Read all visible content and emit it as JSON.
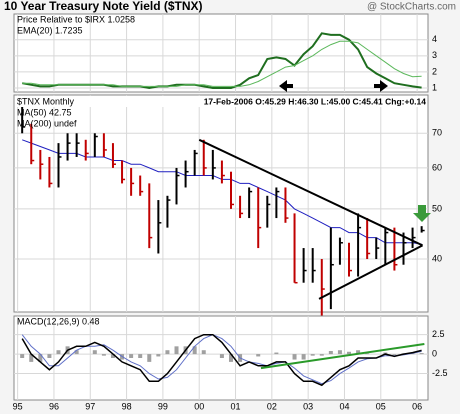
{
  "header": {
    "title": "10 Year Treasury Note Yield ($TNX)",
    "credit": "@ StockCharts.com"
  },
  "chart_data": [
    {
      "type": "line",
      "labels": [
        "Price Relative to $IRX  1.0258",
        "EMA(20)  1.7235"
      ],
      "x": [
        1995.125,
        1995.375,
        1995.625,
        1995.875,
        1996.125,
        1996.375,
        1996.625,
        1996.875,
        1997.125,
        1997.375,
        1997.625,
        1997.875,
        1998.125,
        1998.375,
        1998.625,
        1998.875,
        1999.125,
        1999.375,
        1999.625,
        1999.875,
        2000.125,
        2000.375,
        2000.625,
        2000.875,
        2001.125,
        2001.375,
        2001.625,
        2001.875,
        2002.125,
        2002.375,
        2002.625,
        2002.875,
        2003.125,
        2003.375,
        2003.625,
        2003.875,
        2004.125,
        2004.375,
        2004.625,
        2004.875,
        2005.125,
        2005.375,
        2005.625,
        2005.875,
        2006.125
      ],
      "series": [
        {
          "name": "Price Relative to $IRX",
          "color": "#1f6e1f",
          "width": 2,
          "values": [
            1.3,
            1.2,
            1.1,
            1.1,
            1.2,
            1.2,
            1.2,
            1.2,
            1.2,
            1.2,
            1.1,
            1.1,
            1.1,
            1.1,
            1.0,
            1.1,
            1.1,
            1.2,
            1.2,
            1.2,
            1.1,
            1.0,
            1.0,
            1.0,
            1.2,
            1.6,
            1.8,
            2.8,
            2.9,
            2.8,
            2.4,
            3.1,
            3.6,
            4.4,
            4.3,
            4.3,
            4.0,
            3.4,
            2.3,
            1.9,
            1.6,
            1.3,
            1.2,
            1.1,
            1.0258
          ]
        },
        {
          "name": "EMA(20)",
          "color": "#5cb85c",
          "width": 1,
          "values": [
            1.3,
            1.3,
            1.2,
            1.2,
            1.2,
            1.2,
            1.2,
            1.2,
            1.2,
            1.2,
            1.2,
            1.1,
            1.1,
            1.1,
            1.1,
            1.1,
            1.1,
            1.1,
            1.2,
            1.2,
            1.2,
            1.1,
            1.1,
            1.1,
            1.1,
            1.2,
            1.4,
            1.7,
            2.0,
            2.3,
            2.4,
            2.7,
            3.0,
            3.4,
            3.7,
            3.9,
            3.9,
            3.8,
            3.4,
            3.0,
            2.6,
            2.2,
            1.9,
            1.7,
            1.7235
          ]
        }
      ],
      "xlim": [
        1994.9,
        2006.3
      ],
      "ylim": [
        0.75,
        5.6
      ],
      "yticks": [
        1,
        2,
        3,
        4
      ],
      "grid": true
    },
    {
      "type": "ohlc",
      "name": "$TNX Monthly",
      "quote": "17-Feb-2006 O:45.29 H:46.30 L:45.00 C:45.41 Chg:+0.14",
      "labels": [
        "MA(50) 42.75",
        "MA(200) undef"
      ],
      "label_colors": [
        "#2020c0",
        "#d02020"
      ],
      "x": [
        1995.125,
        1995.375,
        1995.625,
        1995.875,
        1996.125,
        1996.375,
        1996.625,
        1996.875,
        1997.125,
        1997.375,
        1997.625,
        1997.875,
        1998.125,
        1998.375,
        1998.625,
        1998.875,
        1999.125,
        1999.375,
        1999.625,
        1999.875,
        2000.125,
        2000.375,
        2000.625,
        2000.875,
        2001.125,
        2001.375,
        2001.625,
        2001.875,
        2002.125,
        2002.375,
        2002.625,
        2002.875,
        2003.125,
        2003.375,
        2003.625,
        2003.875,
        2004.125,
        2004.375,
        2004.625,
        2004.875,
        2005.125,
        2005.375,
        2005.625,
        2005.875,
        2006.125
      ],
      "high": [
        79,
        73,
        65,
        63,
        67,
        70,
        70,
        68,
        70,
        70,
        67,
        62,
        60,
        58,
        56,
        52,
        53,
        60,
        62,
        65,
        68,
        65,
        62,
        59,
        53,
        55,
        55,
        53,
        55,
        55,
        49,
        42,
        42,
        40,
        46,
        44,
        43,
        49,
        48,
        44,
        46,
        46,
        45,
        46,
        46.3
      ],
      "low": [
        70,
        61,
        57,
        55,
        55,
        62,
        63,
        62,
        63,
        63,
        60,
        56,
        53,
        53,
        42,
        41,
        46,
        51,
        55,
        58,
        58,
        57,
        56,
        50,
        48,
        48,
        42,
        46,
        48,
        47,
        36,
        36,
        36,
        31,
        32,
        39,
        37,
        37,
        40,
        40,
        39,
        38,
        39,
        42,
        45.0
      ],
      "close": [
        72,
        62,
        61,
        56,
        63,
        67,
        67,
        64,
        69,
        65,
        61,
        57,
        56,
        54,
        44,
        47,
        52,
        58,
        59,
        64,
        60,
        60,
        58,
        51,
        49,
        54,
        46,
        51,
        54,
        48,
        36,
        38,
        38,
        35,
        39,
        43,
        38,
        46,
        41,
        42,
        45,
        39,
        43,
        44,
        45.41
      ],
      "ma": {
        "color": "#2020c0",
        "values": [
          68,
          67,
          66,
          65,
          64,
          64,
          64,
          63,
          63,
          63,
          62,
          62,
          61,
          61,
          60,
          59,
          59,
          59,
          58,
          58,
          58,
          58,
          57,
          57,
          56,
          56,
          55,
          54,
          53,
          52,
          50,
          49,
          48,
          47,
          46,
          46,
          45,
          45,
          44,
          44,
          43,
          43,
          43,
          43,
          42.75
        ]
      },
      "up_color": "#000000",
      "down_color": "#c00000",
      "xlim": [
        1994.9,
        2006.3
      ],
      "ylim": [
        31.6,
        83
      ],
      "log": true,
      "yticks": [
        40,
        50,
        60,
        70
      ],
      "grid": true
    },
    {
      "type": "macd",
      "label": "MACD(12,26,9) 0.48",
      "x": [
        1995.125,
        1995.375,
        1995.625,
        1995.875,
        1996.125,
        1996.375,
        1996.625,
        1996.875,
        1997.125,
        1997.375,
        1997.625,
        1997.875,
        1998.125,
        1998.375,
        1998.625,
        1998.875,
        1999.125,
        1999.375,
        1999.625,
        1999.875,
        2000.125,
        2000.375,
        2000.625,
        2000.875,
        2001.125,
        2001.375,
        2001.625,
        2001.875,
        2002.125,
        2002.375,
        2002.625,
        2002.875,
        2003.125,
        2003.375,
        2003.625,
        2003.875,
        2004.125,
        2004.375,
        2004.625,
        2004.875,
        2005.125,
        2005.375,
        2005.625,
        2005.875,
        2006.125
      ],
      "macd": {
        "color": "#000000",
        "values": [
          2,
          0,
          -1,
          -2,
          -1,
          0.5,
          1,
          1,
          1.5,
          1,
          0,
          -1,
          -1.5,
          -2,
          -3.5,
          -3.5,
          -2.5,
          -1,
          0.5,
          2,
          2.5,
          2.5,
          1.5,
          0,
          -1.5,
          -1,
          -1.5,
          -1.5,
          -1,
          -1,
          -2.5,
          -3.5,
          -3.5,
          -4,
          -3,
          -2,
          -1.5,
          -0.5,
          -0.5,
          -0.5,
          0,
          -0.3,
          0,
          0.2,
          0.48
        ]
      },
      "signal": {
        "color": "#6070c8",
        "values": [
          2.5,
          1,
          0,
          -1.5,
          -1.5,
          -0.5,
          0.5,
          1,
          1,
          1.2,
          0.5,
          -0.3,
          -1,
          -1.5,
          -2.5,
          -3.2,
          -3,
          -2,
          -0.5,
          1,
          2,
          2.5,
          2,
          1,
          -0.5,
          -1,
          -1.2,
          -1.5,
          -1.2,
          -1,
          -1.8,
          -2.8,
          -3.3,
          -3.8,
          -3.4,
          -2.5,
          -1.8,
          -1,
          -0.6,
          -0.5,
          -0.2,
          -0.2,
          -0.1,
          0.1,
          0.35
        ]
      },
      "histogram": {
        "color": "#a0a0a0",
        "values": [
          -0.5,
          -1,
          -1,
          -0.5,
          0.5,
          1,
          0.5,
          0,
          0.5,
          -0.2,
          -0.5,
          -0.7,
          -0.5,
          -0.5,
          -1,
          -0.3,
          0.5,
          1,
          1,
          1,
          0.5,
          0,
          -0.5,
          -1,
          -1,
          0,
          -0.3,
          0,
          0.2,
          0,
          -0.7,
          -0.7,
          -0.2,
          -0.2,
          0.4,
          0.5,
          0.3,
          0.5,
          0.1,
          0,
          0.2,
          -0.1,
          0.1,
          0.1,
          0.13
        ]
      },
      "xlim": [
        1994.9,
        2006.3
      ],
      "ylim": [
        -5.9,
        4.9
      ],
      "yticks": [
        -2.5,
        0,
        2.5
      ],
      "grid": true,
      "xticks": [
        {
          "value": 1995,
          "label": "95"
        },
        {
          "value": 1996,
          "label": "96"
        },
        {
          "value": 1997,
          "label": "97"
        },
        {
          "value": 1998,
          "label": "98"
        },
        {
          "value": 1999,
          "label": "99"
        },
        {
          "value": 2000,
          "label": "00"
        },
        {
          "value": 2001,
          "label": "01"
        },
        {
          "value": 2002,
          "label": "02"
        },
        {
          "value": 2003,
          "label": "03"
        },
        {
          "value": 2004,
          "label": "04"
        },
        {
          "value": 2005,
          "label": "05"
        },
        {
          "value": 2006,
          "label": "06"
        }
      ]
    }
  ]
}
